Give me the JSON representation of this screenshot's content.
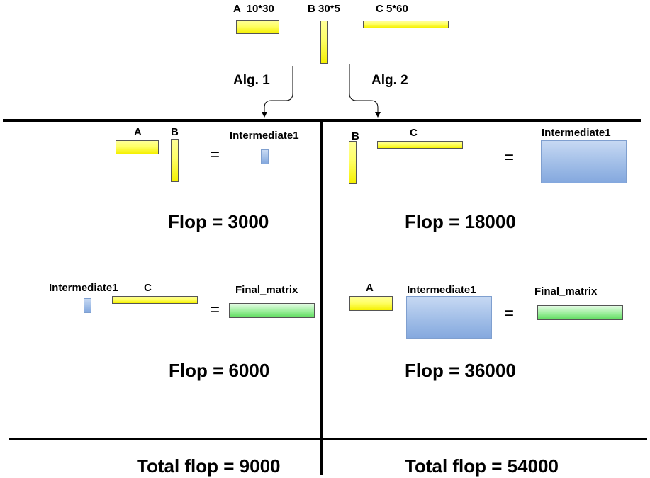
{
  "top": {
    "a_label": "A  10*30",
    "b_label": "B 30*5",
    "c_label": "C 5*60",
    "alg1": "Alg. 1",
    "alg2": "Alg. 2"
  },
  "alg1": {
    "step1": {
      "a": "A",
      "b": "B",
      "result": "Intermediate1",
      "equals": "=",
      "flop": "Flop = 3000"
    },
    "step2": {
      "inter": "Intermediate1",
      "c": "C",
      "result": "Final_matrix",
      "equals": "=",
      "flop": "Flop = 6000"
    },
    "total": "Total flop = 9000"
  },
  "alg2": {
    "step1": {
      "b": "B",
      "c": "C",
      "result": "Intermediate1",
      "equals": "=",
      "flop": "Flop = 18000"
    },
    "step2": {
      "a": "A",
      "inter": "Intermediate1",
      "result": "Final_matrix",
      "equals": "=",
      "flop": "Flop = 36000"
    },
    "total": "Total flop = 54000"
  },
  "colors": {
    "input_matrix": "#ffff66",
    "intermediate_matrix": "#9dbbe6",
    "final_matrix": "#9cef9c",
    "lines": "#000000"
  }
}
